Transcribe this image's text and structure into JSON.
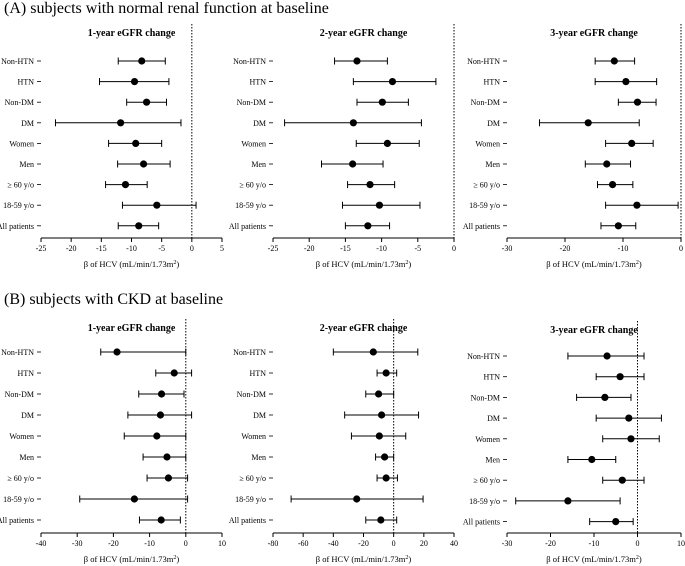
{
  "sections": [
    {
      "title": "(A) subjects with normal renal function at baseline"
    },
    {
      "title": "(B) subjects with CKD at baseline"
    }
  ],
  "chart_data": [
    {
      "type": "forest",
      "section": "A",
      "title": "1-year eGFR change",
      "xlabel": "β of HCV (mL/min/1.73m",
      "xlabel_sup": "2",
      "xlabel_end": ")",
      "xlim": [
        -25,
        5
      ],
      "xticks": [
        -25,
        -20,
        -15,
        -10,
        -5,
        0,
        5
      ],
      "reference_line": 0,
      "categories": [
        "Non-HTN",
        "HTN",
        "Non-DM",
        "DM",
        "Women",
        "Men",
        "≥ 60 y/o",
        "18-59 y/o",
        "All patients"
      ],
      "estimates": [
        -8.3,
        -9.5,
        -7.5,
        -11.8,
        -9.3,
        -8.0,
        -11.0,
        -5.8,
        -8.8
      ],
      "ci_low": [
        -12.2,
        -15.3,
        -10.8,
        -22.6,
        -13.8,
        -12.3,
        -14.3,
        -11.5,
        -12.2
      ],
      "ci_high": [
        -4.4,
        -3.8,
        -4.2,
        -1.8,
        -5.0,
        -3.6,
        -7.4,
        0.7,
        -5.5
      ]
    },
    {
      "type": "forest",
      "section": "A",
      "title": "2-year eGFR change",
      "xlabel": "β of HCV (mL/min/1.73m",
      "xlabel_sup": "2",
      "xlabel_end": ")",
      "xlim": [
        -25,
        0
      ],
      "xticks": [
        -25,
        -20,
        -15,
        -10,
        -5,
        0
      ],
      "reference_line": 0,
      "categories": [
        "Non-HTN",
        "HTN",
        "Non-DM",
        "DM",
        "Women",
        "Men",
        "≥ 60 y/o",
        "18-59 y/o",
        "All patients"
      ],
      "estimates": [
        -13.4,
        -8.5,
        -9.9,
        -13.9,
        -9.2,
        -14.0,
        -11.6,
        -10.3,
        -11.9
      ],
      "ci_low": [
        -16.5,
        -13.9,
        -13.4,
        -23.4,
        -13.5,
        -18.3,
        -14.7,
        -15.4,
        -15.0
      ],
      "ci_high": [
        -9.2,
        -2.5,
        -6.3,
        -4.5,
        -4.8,
        -9.8,
        -8.2,
        -4.7,
        -8.9
      ]
    },
    {
      "type": "forest",
      "section": "A",
      "title": "3-year eGFR change",
      "xlabel": "β of HCV (mL/min/1.73m",
      "xlabel_sup": "2",
      "xlabel_end": ")",
      "xlim": [
        -30,
        0
      ],
      "xticks": [
        -30,
        -20,
        -10,
        0
      ],
      "reference_line": 0,
      "categories": [
        "Non-HTN",
        "HTN",
        "Non-DM",
        "DM",
        "Women",
        "Men",
        "≥ 60 y/o",
        "18-59 y/o",
        "All patients"
      ],
      "estimates": [
        -11.5,
        -9.5,
        -7.5,
        -16.0,
        -8.5,
        -12.8,
        -11.8,
        -7.6,
        -10.8
      ],
      "ci_low": [
        -14.8,
        -14.8,
        -10.8,
        -24.4,
        -13.0,
        -16.5,
        -14.4,
        -13.0,
        -13.8
      ],
      "ci_high": [
        -8.0,
        -4.2,
        -4.3,
        -7.2,
        -4.8,
        -8.7,
        -8.3,
        -0.5,
        -7.8
      ]
    },
    {
      "type": "forest",
      "section": "B",
      "title": "1-year eGFR change",
      "xlabel": "β of HCV (mL/min/1.73m",
      "xlabel_sup": "2",
      "xlabel_end": ")",
      "xlim": [
        -40,
        10
      ],
      "xticks": [
        -40,
        -30,
        -20,
        -10,
        0,
        10
      ],
      "reference_line": 0,
      "categories": [
        "Non-HTN",
        "HTN",
        "Non-DM",
        "DM",
        "Women",
        "Men",
        "≥ 60 y/o",
        "18-59 y/o",
        "All patients"
      ],
      "estimates": [
        -19.0,
        -3.2,
        -6.7,
        -7.0,
        -8.0,
        -5.2,
        -4.8,
        -14.2,
        -6.8
      ],
      "ci_low": [
        -23.5,
        -8.3,
        -13.0,
        -16.0,
        -17.0,
        -11.8,
        -10.7,
        -29.3,
        -12.8
      ],
      "ci_high": [
        0.0,
        1.6,
        -0.5,
        1.6,
        0.0,
        0.0,
        0.5,
        0.5,
        -1.5
      ]
    },
    {
      "type": "forest",
      "section": "B",
      "title": "2-year eGFR change",
      "xlabel": "β of HCV (mL/min/1.73m",
      "xlabel_sup": "2",
      "xlabel_end": ")",
      "xlim": [
        -80,
        40
      ],
      "xticks": [
        -80,
        -60,
        -40,
        -20,
        0,
        20,
        40
      ],
      "reference_line": 0,
      "categories": [
        "Non-HTN",
        "HTN",
        "Non-DM",
        "DM",
        "Women",
        "Men",
        "≥ 60 y/o",
        "18-59 y/o",
        "All patients"
      ],
      "estimates": [
        -13.5,
        -5.0,
        -10.0,
        -8.0,
        -9.5,
        -6.0,
        -5.0,
        -24.5,
        -8.5
      ],
      "ci_low": [
        -40.0,
        -11.0,
        -18.5,
        -32.5,
        -28.0,
        -12.0,
        -11.0,
        -68.0,
        -18.5
      ],
      "ci_high": [
        16.0,
        2.0,
        0.0,
        16.5,
        8.0,
        0.0,
        2.5,
        19.5,
        2.0
      ]
    },
    {
      "type": "forest",
      "section": "B",
      "title": "3-year eGFR change",
      "xlabel": "β of HCV (mL/min/1.73m",
      "xlabel_sup": "2",
      "xlabel_end": ")",
      "xlim": [
        -30,
        10
      ],
      "xticks": [
        -30,
        -20,
        -10,
        0,
        10
      ],
      "reference_line": 0,
      "categories": [
        "Non-HTN",
        "HTN",
        "Non-DM",
        "DM",
        "Women",
        "Men",
        "≥ 60 y/o",
        "18-59 y/o",
        "All patients"
      ],
      "estimates": [
        -7.0,
        -4.0,
        -7.5,
        -2.0,
        -1.5,
        -10.5,
        -3.5,
        -16.0,
        -5.0
      ],
      "ci_low": [
        -16.0,
        -9.5,
        -14.0,
        -9.5,
        -8.0,
        -16.0,
        -8.0,
        -28.0,
        -11.0
      ],
      "ci_high": [
        1.5,
        1.5,
        -1.5,
        5.5,
        5.0,
        -5.0,
        1.5,
        -4.0,
        -1.0
      ]
    }
  ]
}
